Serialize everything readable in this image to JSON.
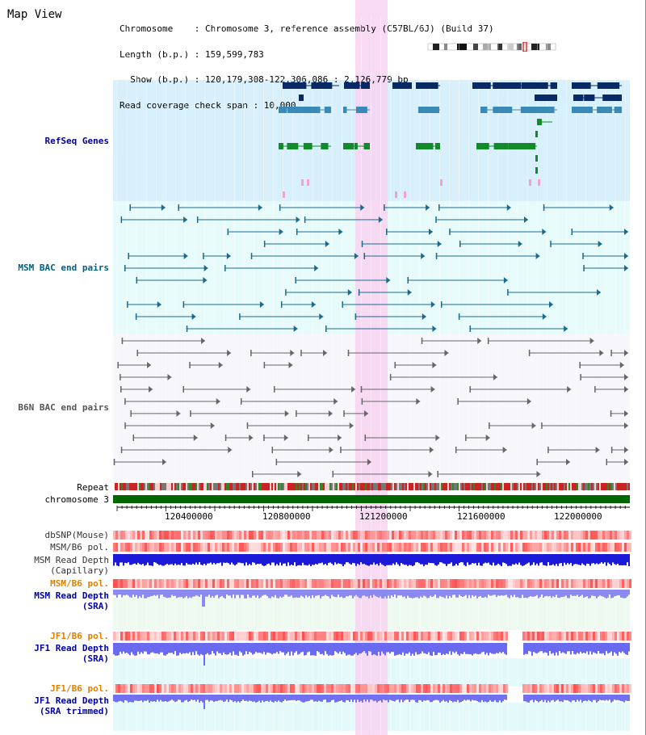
{
  "header": {
    "title": "Map View",
    "info_lines": [
      "Chromosome    : Chromosome 3, reference assembly (C57BL/6J) (Build 37)",
      "Length (b.p.) : 159,599,783",
      "  Show (b.p.) : 120,179,308-122,306,086 : 2,126,779 bp",
      "Read coverage check span : 10,000"
    ]
  },
  "tracks": {
    "refseq": {
      "label": "RefSeq Genes",
      "color": "#000099"
    },
    "msm_bac": {
      "label": "MSM BAC end pairs",
      "color": "#006080"
    },
    "b6n_bac": {
      "label": "B6N BAC end pairs",
      "color": "#555555"
    },
    "repeat": {
      "label": "Repeat"
    },
    "chromosome": {
      "label": "chromosome 3"
    },
    "dbsnp": {
      "label": "dbSNP(Mouse)"
    },
    "msm_b6_pol_1": {
      "label": "MSM/B6 pol."
    },
    "msm_read_depth_cap": {
      "label1": "MSM Read Depth",
      "label2": "(Capillary)"
    },
    "msm_b6_pol_2": {
      "label": "MSM/B6 pol."
    },
    "msm_read_depth_sra": {
      "label1": "MSM Read Depth",
      "label2": "(SRA)"
    },
    "jf1_b6_pol_1": {
      "label": "JF1/B6 pol."
    },
    "jf1_read_depth_sra": {
      "label1": "JF1 Read Depth",
      "label2": "(SRA)"
    },
    "jf1_b6_pol_2": {
      "label": "JF1/B6 pol."
    },
    "jf1_read_depth_trim": {
      "label1": "JF1 Read Depth",
      "label2": "(SRA trimmed)"
    }
  },
  "axis": {
    "ticks": [
      "120400000",
      "120800000",
      "121200000",
      "121600000",
      "122000000"
    ]
  },
  "colors": {
    "refseq_bg": "#d8f0fb",
    "msm_bac_bg": "#e8fbfb",
    "b6n_bac_bg": "#f6f6fb",
    "highlight": "#f7d3f0",
    "chrom_green": "#006600",
    "orange_label": "#e08000",
    "blue_label": "#0000aa"
  }
}
